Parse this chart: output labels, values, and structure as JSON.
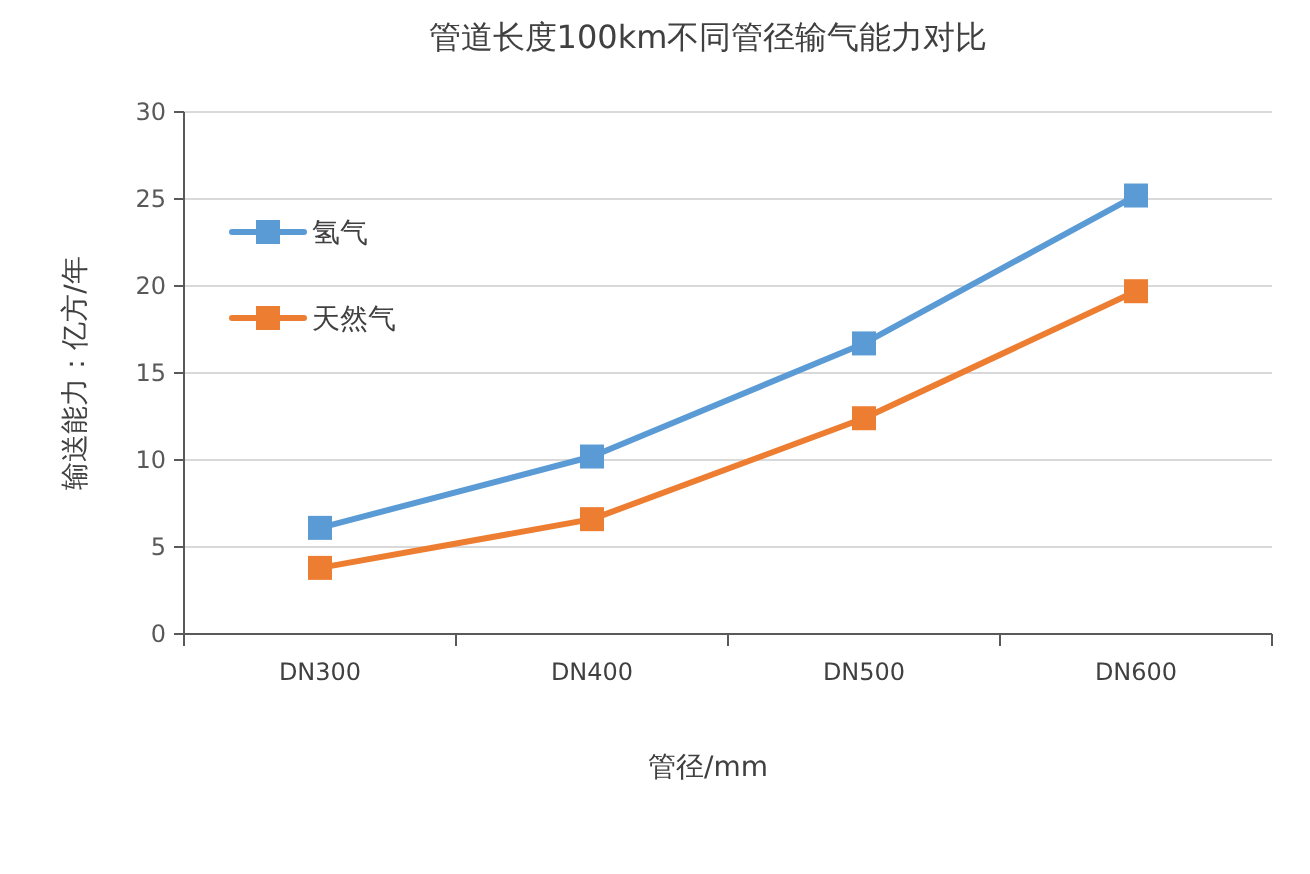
{
  "chart_data": {
    "type": "line",
    "title": "管道长度100km不同管径输气能力对比",
    "xlabel": "管径/mm",
    "ylabel": "输送能力：亿方/年",
    "categories": [
      "DN300",
      "DN400",
      "DN500",
      "DN600"
    ],
    "series": [
      {
        "name": "氢气",
        "color": "#5b9bd5",
        "values": [
          6.1,
          10.2,
          16.7,
          25.2
        ]
      },
      {
        "name": "天然气",
        "color": "#ed7d31",
        "values": [
          3.8,
          6.6,
          12.4,
          19.7
        ]
      }
    ],
    "ylim": [
      0,
      30
    ],
    "yticks": [
      0,
      5,
      10,
      15,
      20,
      25,
      30
    ],
    "grid": "y",
    "legend": "top left",
    "marker": "square"
  }
}
